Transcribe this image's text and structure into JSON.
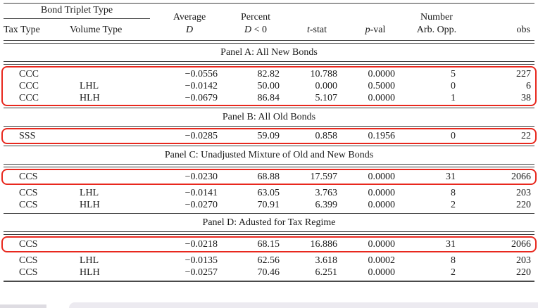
{
  "table": {
    "highlight_color": "#e8281e",
    "header": {
      "group_title": "Bond Triplet Type",
      "col_tax": "Tax Type",
      "col_volume": "Volume Type",
      "col_avg_line1": "Average",
      "col_avg_line2_math": "D",
      "col_pct_line1": "Percent",
      "col_pct_line2_math": "D",
      "col_pct_line2_rest": " < 0",
      "col_tstat_math": "t",
      "col_tstat_rest": "-stat",
      "col_pval_math": "p",
      "col_pval_rest": "-val",
      "col_num_line1": "Number",
      "col_num_line2": "Arb. Opp.",
      "col_obs": "obs"
    },
    "panels": [
      {
        "title": "Panel A: All New Bonds",
        "rows": [
          {
            "tax": "CCC",
            "volume": "",
            "avg": "−0.0556",
            "pct": "82.82",
            "tstat": "10.788",
            "pval": "0.0000",
            "arb": "5",
            "obs": "227"
          },
          {
            "tax": "CCC",
            "volume": "LHL",
            "avg": "−0.0142",
            "pct": "50.00",
            "tstat": "0.000",
            "pval": "0.5000",
            "arb": "0",
            "obs": "6"
          },
          {
            "tax": "CCC",
            "volume": "HLH",
            "avg": "−0.0679",
            "pct": "86.84",
            "tstat": "5.107",
            "pval": "0.0000",
            "arb": "1",
            "obs": "38"
          }
        ]
      },
      {
        "title": "Panel B: All Old Bonds",
        "rows": [
          {
            "tax": "SSS",
            "volume": "",
            "avg": "−0.0285",
            "pct": "59.09",
            "tstat": "0.858",
            "pval": "0.1956",
            "arb": "0",
            "obs": "22"
          }
        ]
      },
      {
        "title": "Panel C: Unadjusted Mixture of Old and New Bonds",
        "rows": [
          {
            "tax": "CCS",
            "volume": "",
            "avg": "−0.0230",
            "pct": "68.88",
            "tstat": "17.597",
            "pval": "0.0000",
            "arb": "31",
            "obs": "2066"
          },
          {
            "tax": "CCS",
            "volume": "LHL",
            "avg": "−0.0141",
            "pct": "63.05",
            "tstat": "3.763",
            "pval": "0.0000",
            "arb": "8",
            "obs": "203"
          },
          {
            "tax": "CCS",
            "volume": "HLH",
            "avg": "−0.0270",
            "pct": "70.91",
            "tstat": "6.399",
            "pval": "0.0000",
            "arb": "2",
            "obs": "220"
          }
        ]
      },
      {
        "title": "Panel D: Adusted for Tax Regime",
        "rows": [
          {
            "tax": "CCS",
            "volume": "",
            "avg": "−0.0218",
            "pct": "68.15",
            "tstat": "16.886",
            "pval": "0.0000",
            "arb": "31",
            "obs": "2066"
          },
          {
            "tax": "CCS",
            "volume": "LHL",
            "avg": "−0.0135",
            "pct": "62.56",
            "tstat": "3.618",
            "pval": "0.0002",
            "arb": "8",
            "obs": "203"
          },
          {
            "tax": "CCS",
            "volume": "HLH",
            "avg": "−0.0257",
            "pct": "70.46",
            "tstat": "6.251",
            "pval": "0.0000",
            "arb": "2",
            "obs": "220"
          }
        ]
      }
    ]
  }
}
